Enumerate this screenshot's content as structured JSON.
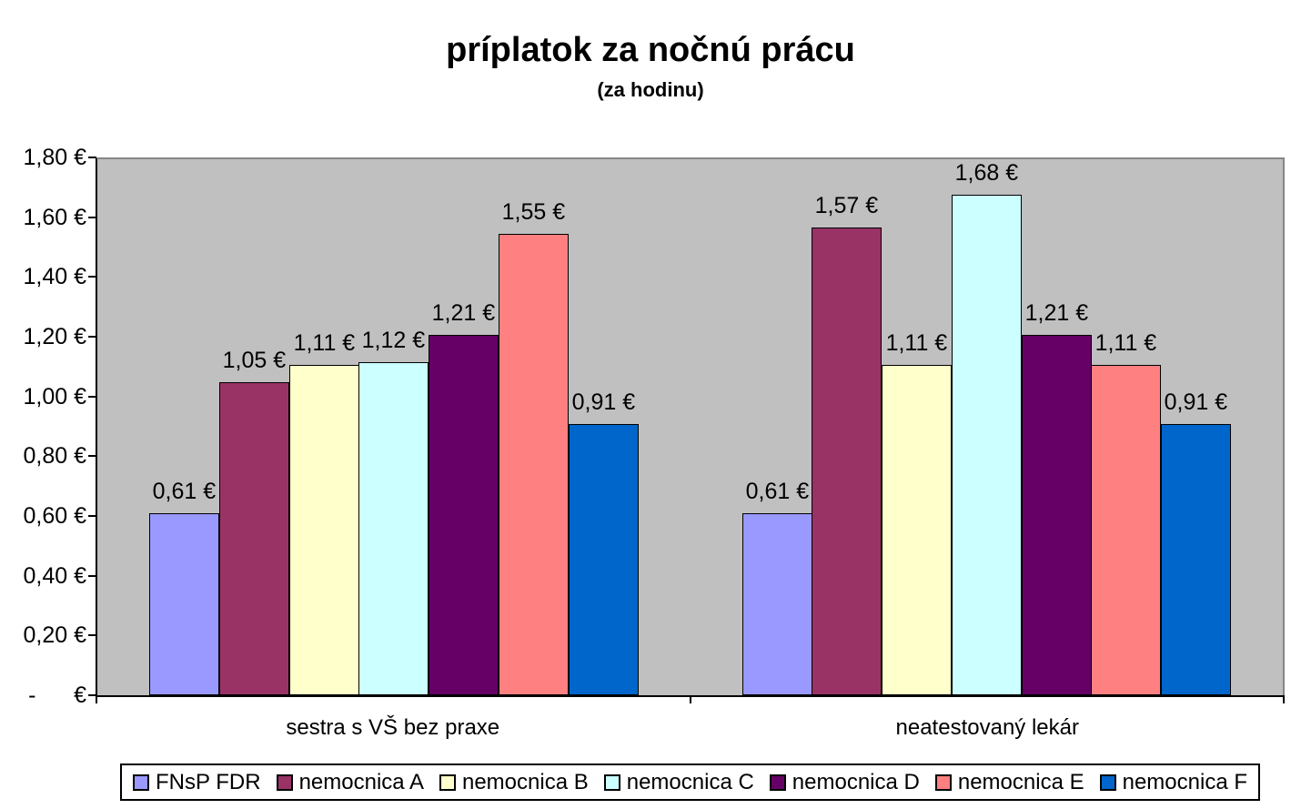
{
  "chart_data": {
    "type": "bar",
    "title": "príplatok za nočnú prácu",
    "subtitle": "(za hodinu)",
    "categories": [
      "sestra s VŠ bez praxe",
      "neatestovaný lekár"
    ],
    "series": [
      {
        "name": "FNsP FDR",
        "color": "#9999FF",
        "values": [
          0.61,
          0.61
        ],
        "labels": [
          "0,61 €",
          "0,61 €"
        ]
      },
      {
        "name": "nemocnica A",
        "color": "#993366",
        "values": [
          1.05,
          1.57
        ],
        "labels": [
          "1,05 €",
          "1,57 €"
        ]
      },
      {
        "name": "nemocnica B",
        "color": "#FFFFCC",
        "values": [
          1.11,
          1.11
        ],
        "labels": [
          "1,11 €",
          "1,11 €"
        ]
      },
      {
        "name": "nemocnica C",
        "color": "#CCFFFF",
        "values": [
          1.12,
          1.68
        ],
        "labels": [
          "1,12 €",
          "1,68 €"
        ]
      },
      {
        "name": "nemocnica D",
        "color": "#660066",
        "values": [
          1.21,
          1.21
        ],
        "labels": [
          "1,21 €",
          "1,21 €"
        ]
      },
      {
        "name": "nemocnica E",
        "color": "#FF8080",
        "values": [
          1.55,
          1.11
        ],
        "labels": [
          "1,55 €",
          "1,11 €"
        ]
      },
      {
        "name": "nemocnica F",
        "color": "#0066CC",
        "values": [
          0.91,
          0.91
        ],
        "labels": [
          "0,91 €",
          "0,91 €"
        ]
      }
    ],
    "y_axis": {
      "min": 0,
      "max": 1.8,
      "step": 0.2,
      "tick_labels": [
        "1,80 €",
        "1,60 €",
        "1,40 €",
        "1,20 €",
        "1,00 €",
        "0,80 €",
        "0,60 €",
        "0,40 €",
        "0,20 €",
        "-      €"
      ]
    },
    "legend_position": "bottom",
    "grid": false,
    "data_labels": true,
    "plot_bg": "#C0C0C0",
    "axis_color": "#000000",
    "plot_border_color": "#868686"
  }
}
